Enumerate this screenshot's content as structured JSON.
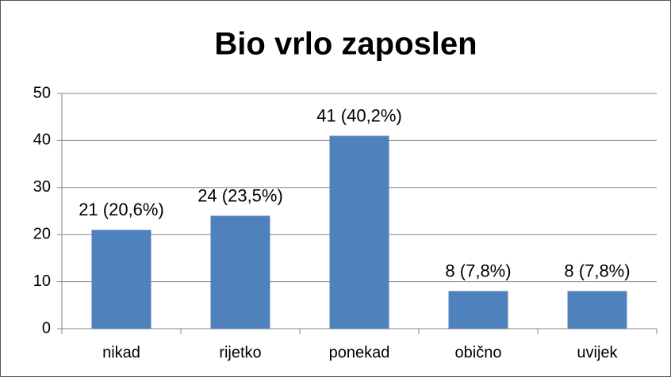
{
  "chart_data": {
    "type": "bar",
    "title": "Bio vrlo zaposlen",
    "categories": [
      "nikad",
      "rijetko",
      "ponekad",
      "obično",
      "uvijek"
    ],
    "values": [
      21,
      24,
      41,
      8,
      8
    ],
    "value_labels": [
      "21 (20,6%)",
      "24 (23,5%)",
      "41 (40,2%)",
      "8 (7,8%)",
      "8 (7,8%)"
    ],
    "color": "#4f81bd",
    "ylim": [
      0,
      50
    ],
    "yticks": [
      0,
      10,
      20,
      30,
      40,
      50
    ],
    "grid": true
  }
}
